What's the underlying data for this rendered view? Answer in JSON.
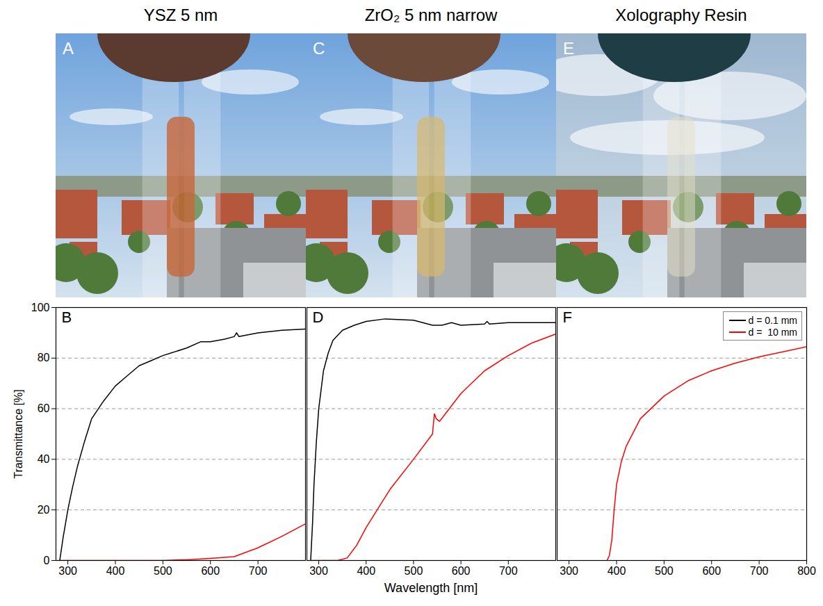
{
  "columns": [
    {
      "title": "YSZ 5 nm",
      "photo_label": "A"
    },
    {
      "title": "ZrO₂ 5 nm narrow",
      "photo_label": "C"
    },
    {
      "title": "Xolography Resin",
      "photo_label": "E"
    }
  ],
  "x_label": "Wavelength [nm]",
  "chart_data": [
    {
      "type": "line",
      "label": "B",
      "y_label": "Transmittance [%]",
      "xlim": [
        275,
        800
      ],
      "xticks": [
        300,
        400,
        500,
        600,
        700
      ],
      "ylim": [
        0,
        100
      ],
      "yticks": [
        0,
        20,
        40,
        60,
        80,
        100
      ],
      "grid": "y",
      "series": [
        {
          "name": "d = 0.1 mm",
          "color": "#000000",
          "x": [
            283,
            290,
            300,
            310,
            320,
            335,
            350,
            375,
            400,
            425,
            450,
            475,
            500,
            550,
            580,
            600,
            630,
            650,
            655,
            660,
            700,
            750,
            800
          ],
          "values": [
            0,
            9,
            20,
            29,
            37,
            47,
            56,
            63,
            69,
            73,
            77,
            79,
            81,
            84,
            86.5,
            86.5,
            87.5,
            88.5,
            90,
            88.5,
            90,
            91,
            91.5
          ]
        },
        {
          "name": "d =  10 mm",
          "color": "#ff0000",
          "x": [
            283,
            400,
            500,
            550,
            600,
            650,
            700,
            750,
            800
          ],
          "values": [
            0,
            0,
            0,
            0.3,
            0.8,
            1.5,
            5,
            9.5,
            14.5
          ]
        }
      ]
    },
    {
      "type": "line",
      "label": "D",
      "xlim": [
        275,
        800
      ],
      "xticks": [
        300,
        400,
        500,
        600,
        700
      ],
      "ylim": [
        0,
        100
      ],
      "yticks": [
        0,
        20,
        40,
        60,
        80,
        100
      ],
      "grid": "y",
      "tick_labels": "x",
      "series": [
        {
          "name": "d = 0.1 mm",
          "color": "#000000",
          "x": [
            283,
            287,
            290,
            295,
            300,
            310,
            320,
            330,
            350,
            375,
            400,
            440,
            500,
            540,
            560,
            580,
            600,
            650,
            655,
            660,
            700,
            800
          ],
          "values": [
            0,
            15,
            30,
            47,
            60,
            75,
            82,
            87,
            91,
            93,
            94.5,
            95.5,
            95,
            93,
            93,
            94,
            93,
            93.5,
            94.5,
            93.5,
            94,
            94
          ]
        },
        {
          "name": "d =  10 mm",
          "color": "#ff0000",
          "x": [
            283,
            340,
            360,
            380,
            400,
            430,
            450,
            500,
            540,
            544,
            548,
            555,
            600,
            650,
            700,
            750,
            800
          ],
          "values": [
            0,
            0,
            1,
            6,
            13,
            22,
            28,
            40,
            50,
            58,
            56,
            55,
            66,
            75,
            81,
            86,
            89.5
          ]
        }
      ]
    },
    {
      "type": "line",
      "label": "F",
      "xlim": [
        275,
        800
      ],
      "xticks": [
        300,
        400,
        500,
        600,
        700,
        800
      ],
      "ylim": [
        0,
        100
      ],
      "yticks": [
        0,
        20,
        40,
        60,
        80,
        100
      ],
      "grid": "y",
      "tick_labels": "x",
      "legend": "top-right",
      "legend_series": [
        {
          "name": "d = 0.1 mm",
          "color": "#000000"
        },
        {
          "name": "d =  10 mm",
          "color": "#ff0000"
        }
      ],
      "series": [
        {
          "name": "d =  10 mm",
          "color": "#ff0000",
          "x": [
            380,
            385,
            390,
            395,
            400,
            410,
            420,
            450,
            500,
            550,
            600,
            650,
            700,
            750,
            800
          ],
          "values": [
            0,
            2,
            8,
            20,
            30,
            39,
            45,
            56,
            65,
            71,
            75,
            78,
            80.5,
            82.5,
            84.5
          ]
        }
      ]
    }
  ]
}
